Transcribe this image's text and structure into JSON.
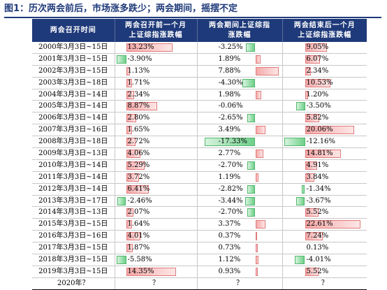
{
  "title": "图1：历次两会前后，市场涨多跌少；两会期间，摇摆不定",
  "table": {
    "headers": [
      "两会召开时间",
      "两会召开前一个月\n上证综指涨跌幅",
      "两会期间上证综指\n涨跌幅",
      "两会结束后一个月\n上证综指涨跌幅"
    ],
    "rows": [
      {
        "period": "2000年3月3日~15日",
        "before": "13.23%",
        "during": "-3.25%",
        "after": "9.05%"
      },
      {
        "period": "2001年3月3日~15日",
        "before": "-3.90%",
        "during": "1.89%",
        "after": "6.07%"
      },
      {
        "period": "2002年3月3日~15日",
        "before": "1.13%",
        "during": "7.88%",
        "after": "2.34%"
      },
      {
        "period": "2003年3月3日~18日",
        "before": "1.71%",
        "during": "-4.30%",
        "after": "10.53%"
      },
      {
        "period": "2004年3月3日~14日",
        "before": "2.34%",
        "during": "1.98%",
        "after": "1.20%"
      },
      {
        "period": "2005年3月3日~14日",
        "before": "8.87%",
        "during": "-0.06%",
        "after": "-3.50%"
      },
      {
        "period": "2006年3月3日~14日",
        "before": "2.80%",
        "during": "-2.65%",
        "after": "5.82%"
      },
      {
        "period": "2007年3月3日~16日",
        "before": "1.65%",
        "during": "3.49%",
        "after": "20.06%"
      },
      {
        "period": "2008年3月3日~18日",
        "before": "2.72%",
        "during": "-17.33%",
        "after": "-12.16%"
      },
      {
        "period": "2009年3月3日~13日",
        "before": "4.06%",
        "during": "2.77%",
        "after": "14.81%"
      },
      {
        "period": "2010年3月3日~14日",
        "before": "5.29%",
        "during": "-2.70%",
        "after": "4.91%"
      },
      {
        "period": "2011年3月3日~14日",
        "before": "3.72%",
        "during": "1.19%",
        "after": "3.84%"
      },
      {
        "period": "2012年3月3日~14日",
        "before": "6.41%",
        "during": "-2.82%",
        "after": "-1.34%"
      },
      {
        "period": "2013年3月3日~17日",
        "before": "-2.46%",
        "during": "-3.44%",
        "after": "-3.67%"
      },
      {
        "period": "2014年3月3日~13日",
        "before": "2.07%",
        "during": "-2.70%",
        "after": "5.52%"
      },
      {
        "period": "2015年3月3日~15日",
        "before": "1.64%",
        "during": "3.37%",
        "after": "22.61%"
      },
      {
        "period": "2016年3月3日~16日",
        "before": "4.01%",
        "during": "0.37%",
        "after": "7.24%"
      },
      {
        "period": "2017年3月3日~15日",
        "before": "1.87%",
        "during": "0.73%",
        "after": "0.13%"
      },
      {
        "period": "2018年3月3日~15日",
        "before": "-5.58%",
        "during": "1.12%",
        "after": "-4.01%"
      },
      {
        "period": "2019年3月3日~15日",
        "before": "14.35%",
        "during": "0.93%",
        "after": "5.52%"
      }
    ],
    "final_row": {
      "period": "2020年？",
      "before": "？",
      "during": "？",
      "after": "？"
    }
  },
  "colors": {
    "header_bg": "#1f3a7a",
    "positive_bar": "#f4a9a9",
    "negative_bar": "#6fd08a"
  }
}
